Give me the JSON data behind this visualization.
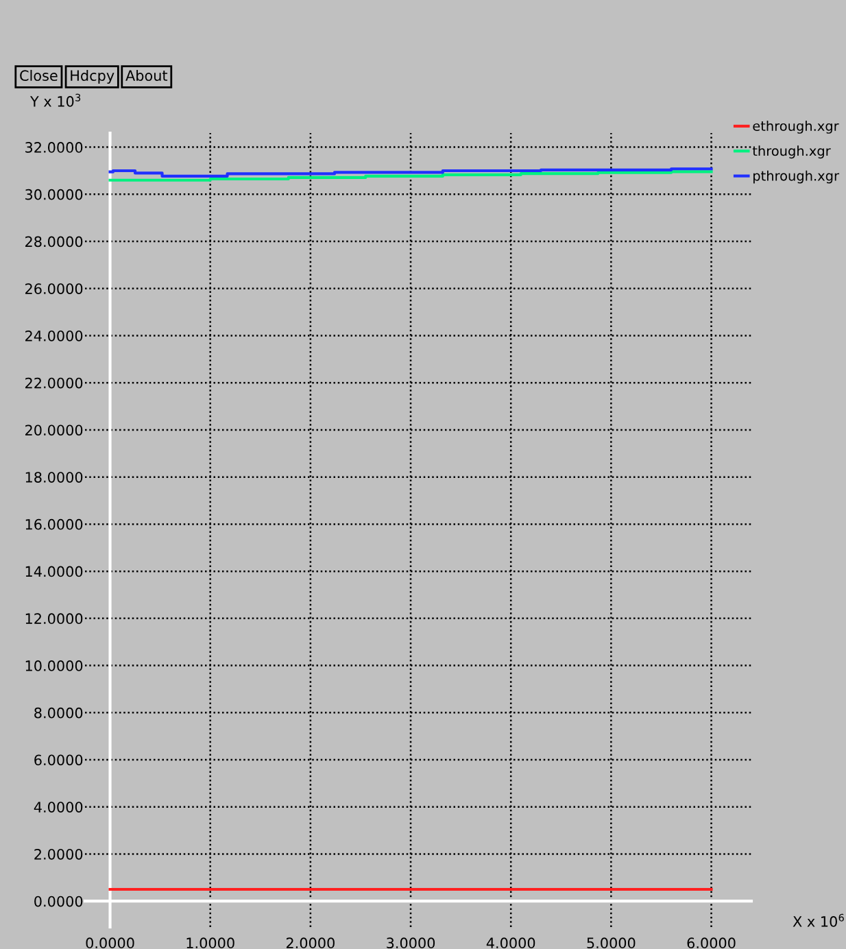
{
  "chart_data": {
    "type": "step",
    "xlabel": "X x 10$^{6}$",
    "ylabel": "Y x 10$^{3}$",
    "annotations": [
      "Close",
      "Hdcpy",
      "About"
    ],
    "series": [
      {
        "name": "ethrough.xgr",
        "color": "#ff2020",
        "x": [
          0,
          6.0
        ],
        "values": [
          0.5,
          0.5
        ]
      },
      {
        "name": "through.xgr",
        "color": "#00f080",
        "x": [
          0,
          1.0,
          1.78,
          2.55,
          3.32,
          4.1,
          4.87,
          5.6,
          6.0
        ],
        "values": [
          30.6,
          30.65,
          30.71,
          30.77,
          30.83,
          30.88,
          30.92,
          30.96,
          30.96
        ]
      },
      {
        "name": "pthrough.xgr",
        "color": "#2030ff",
        "x": [
          0,
          0.03,
          0.25,
          0.52,
          1.17,
          2.24,
          3.32,
          4.3,
          5.6,
          6.0
        ],
        "values": [
          30.95,
          31.0,
          30.9,
          30.77,
          30.87,
          30.93,
          31.0,
          31.03,
          31.08,
          31.08
        ]
      }
    ],
    "xlim": [
      -0.25,
      6.4
    ],
    "ylim": [
      -1.1,
      32.6
    ],
    "xticks": [
      {
        "value": 0,
        "label": "0.0000"
      },
      {
        "value": 1,
        "label": "1.0000"
      },
      {
        "value": 2,
        "label": "2.0000"
      },
      {
        "value": 3,
        "label": "3.0000"
      },
      {
        "value": 4,
        "label": "4.0000"
      },
      {
        "value": 5,
        "label": "5.0000"
      },
      {
        "value": 6,
        "label": "6.0000"
      }
    ],
    "yticks": [
      {
        "value": 0,
        "label": "0.0000"
      },
      {
        "value": 2,
        "label": "2.0000"
      },
      {
        "value": 4,
        "label": "4.0000"
      },
      {
        "value": 6,
        "label": "6.0000"
      },
      {
        "value": 8,
        "label": "8.0000"
      },
      {
        "value": 10,
        "label": "10.0000"
      },
      {
        "value": 12,
        "label": "12.0000"
      },
      {
        "value": 14,
        "label": "14.0000"
      },
      {
        "value": 16,
        "label": "16.0000"
      },
      {
        "value": 18,
        "label": "18.0000"
      },
      {
        "value": 20,
        "label": "20.0000"
      },
      {
        "value": 22,
        "label": "22.0000"
      },
      {
        "value": 24,
        "label": "24.0000"
      },
      {
        "value": 26,
        "label": "26.0000"
      },
      {
        "value": 28,
        "label": "28.0000"
      },
      {
        "value": 30,
        "label": "30.0000"
      },
      {
        "value": 32,
        "label": "32.0000"
      }
    ],
    "grid": true,
    "legend": "right",
    "line_style": "solid"
  }
}
